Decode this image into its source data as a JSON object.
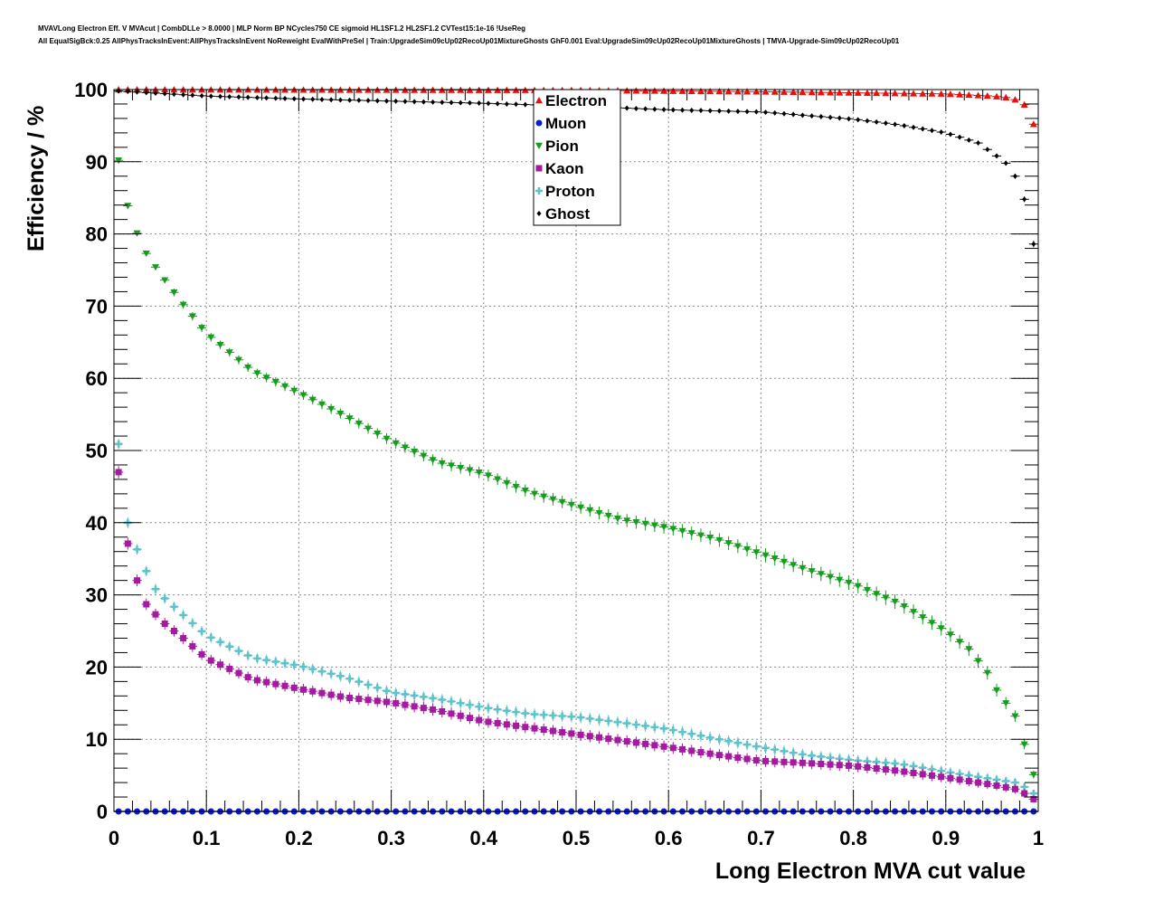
{
  "header": {
    "title_line_1": "MVAVLong Electron Eff. V MVAcut | CombDLLe > 8.0000 | MLP Norm BP NCycles750 CE sigmoid HL1SF1.2 HL2SF1.2 CVTest15:1e-16 !UseReg",
    "title_line_2": "All EqualSigBck:0.25 AllPhysTracksInEvent:AllPhysTracksInEvent NoReweight EvalWithPreSel | Train:UpgradeSim09cUp02RecoUp01MixtureGhosts GhF0.001 Eval:UpgradeSim09cUp02RecoUp01MixtureGhosts | TMVA-Upgrade-Sim09cUp02RecoUp01"
  },
  "chart_data": {
    "type": "scatter",
    "title": "",
    "xlabel": "Long Electron MVA cut value",
    "ylabel": "Efficiency / %",
    "xlim": [
      0,
      1
    ],
    "ylim": [
      0,
      100
    ],
    "x_ticks": [
      "0",
      "0.1",
      "0.2",
      "0.3",
      "0.4",
      "0.5",
      "0.6",
      "0.7",
      "0.8",
      "0.9",
      "1"
    ],
    "y_ticks": [
      "0",
      "10",
      "20",
      "30",
      "40",
      "50",
      "60",
      "70",
      "80",
      "90",
      "100"
    ],
    "grid": true,
    "legend_position": "top-center",
    "series": [
      {
        "name": "Electron",
        "color": "#e8100c",
        "marker": "triangle-up",
        "error_scale": 0.02,
        "knots_x": [
          0.005,
          0.5,
          0.7,
          0.9,
          0.95,
          0.965,
          0.975,
          0.985,
          0.995
        ],
        "knots_y": [
          100,
          99.9,
          99.7,
          99.4,
          99.1,
          98.9,
          98.6,
          97.9,
          95.2
        ]
      },
      {
        "name": "Muon",
        "color": "#0a1ed0",
        "marker": "circle",
        "error_scale": 0,
        "knots_x": [
          0.005,
          0.995
        ],
        "knots_y": [
          0,
          0
        ]
      },
      {
        "name": "Pion",
        "color": "#169c1e",
        "marker": "triangle-down",
        "error_scale": 0.11,
        "knots_x": [
          0.005,
          0.015,
          0.025,
          0.035,
          0.045,
          0.055,
          0.075,
          0.1,
          0.15,
          0.2,
          0.25,
          0.3,
          0.35,
          0.4,
          0.45,
          0.5,
          0.55,
          0.6,
          0.65,
          0.7,
          0.75,
          0.8,
          0.85,
          0.9,
          0.925,
          0.945,
          0.955,
          0.965,
          0.975,
          0.985,
          0.995
        ],
        "knots_y": [
          90.2,
          83.9,
          80.1,
          77.3,
          75.4,
          73.6,
          70.2,
          66.2,
          61.0,
          58.0,
          54.8,
          51.3,
          48.4,
          46.8,
          44.2,
          42.3,
          40.4,
          39.3,
          37.8,
          35.7,
          33.5,
          31.5,
          28.8,
          25.0,
          22.5,
          19.2,
          16.8,
          15.0,
          13.2,
          9.3,
          5.1
        ]
      },
      {
        "name": "Kaon",
        "color": "#a61aa1",
        "marker": "square",
        "error_scale": 0.17,
        "knots_x": [
          0.005,
          0.015,
          0.025,
          0.035,
          0.045,
          0.055,
          0.075,
          0.1,
          0.15,
          0.2,
          0.25,
          0.3,
          0.35,
          0.4,
          0.45,
          0.5,
          0.55,
          0.6,
          0.65,
          0.7,
          0.75,
          0.8,
          0.85,
          0.9,
          0.95,
          0.975,
          0.985,
          0.995
        ],
        "knots_y": [
          47.0,
          37.1,
          32.0,
          28.7,
          27.3,
          26.0,
          24.0,
          21.2,
          18.3,
          17.0,
          15.8,
          15.1,
          14.0,
          12.5,
          11.6,
          10.7,
          9.8,
          8.9,
          7.9,
          7.0,
          6.7,
          6.3,
          5.6,
          4.7,
          3.7,
          3.1,
          2.5,
          1.7
        ]
      },
      {
        "name": "Proton",
        "color": "#5dc2c9",
        "marker": "cross",
        "error_scale": 0.15,
        "knots_x": [
          0.005,
          0.015,
          0.025,
          0.035,
          0.045,
          0.055,
          0.075,
          0.1,
          0.15,
          0.2,
          0.25,
          0.3,
          0.35,
          0.4,
          0.45,
          0.5,
          0.55,
          0.6,
          0.65,
          0.7,
          0.75,
          0.8,
          0.85,
          0.9,
          0.95,
          0.975,
          0.985,
          0.995
        ],
        "knots_y": [
          50.9,
          40.0,
          36.3,
          33.3,
          30.8,
          29.5,
          27.2,
          24.4,
          21.3,
          20.2,
          18.6,
          16.5,
          15.6,
          14.4,
          13.5,
          13.1,
          12.3,
          11.4,
          10.1,
          8.9,
          7.8,
          7.1,
          6.6,
          5.5,
          4.5,
          4.0,
          3.4,
          2.5
        ]
      },
      {
        "name": "Ghost",
        "color": "#000000",
        "marker": "diamond",
        "error_scale": 0.05,
        "knots_x": [
          0.005,
          0.1,
          0.2,
          0.3,
          0.4,
          0.5,
          0.6,
          0.7,
          0.8,
          0.85,
          0.9,
          0.935,
          0.955,
          0.965,
          0.975,
          0.985,
          0.995
        ],
        "knots_y": [
          99.8,
          99.1,
          98.7,
          98.4,
          98.1,
          97.7,
          97.2,
          96.9,
          95.9,
          95.1,
          94.0,
          92.6,
          90.8,
          89.8,
          88.0,
          84.8,
          78.6
        ]
      }
    ]
  }
}
